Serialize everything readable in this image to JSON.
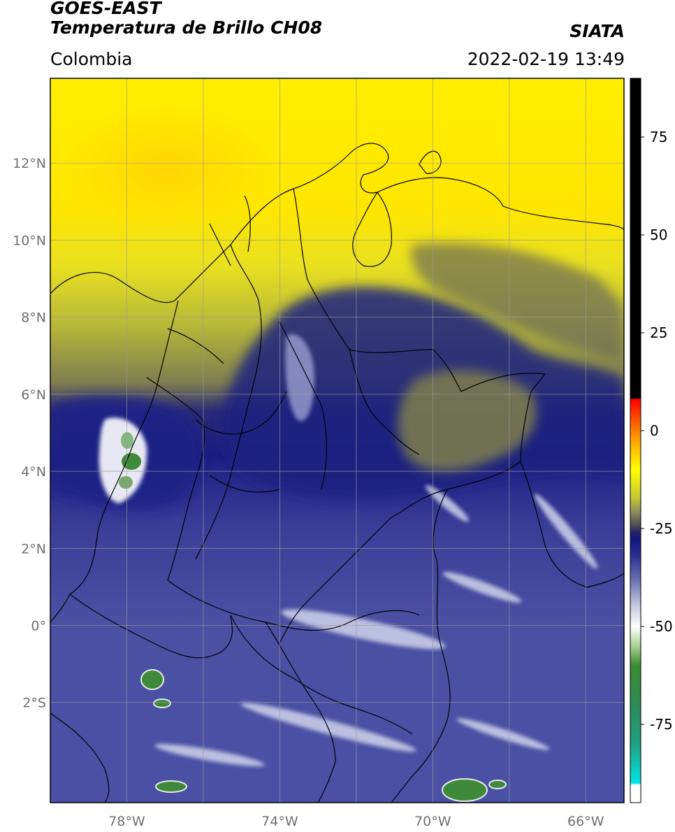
{
  "header": {
    "title_line1": "GOES-EAST",
    "title_line2": "Temperatura de Brillo CH08",
    "region": "Colombia",
    "source": "SIATA",
    "timestamp": "2022-02-19 13:49"
  },
  "map": {
    "lon_range": [
      -80,
      -65
    ],
    "lat_range": [
      -4.6,
      14.2
    ],
    "lon_ticks": [
      {
        "value": -78,
        "label": "78°W"
      },
      {
        "value": -74,
        "label": "74°W"
      },
      {
        "value": -70,
        "label": "70°W"
      },
      {
        "value": -66,
        "label": "66°W"
      }
    ],
    "lat_ticks": [
      {
        "value": 12,
        "label": "12°N"
      },
      {
        "value": 10,
        "label": "10°N"
      },
      {
        "value": 8,
        "label": "8°N"
      },
      {
        "value": 6,
        "label": "6°N"
      },
      {
        "value": 4,
        "label": "4°N"
      },
      {
        "value": 2,
        "label": "2°N"
      },
      {
        "value": 0,
        "label": "0°"
      },
      {
        "value": -2,
        "label": "2°S"
      }
    ]
  },
  "colorbar": {
    "range": [
      -95,
      90
    ],
    "ticks": [
      {
        "value": 75,
        "label": "75"
      },
      {
        "value": 50,
        "label": "50"
      },
      {
        "value": 25,
        "label": "25"
      },
      {
        "value": 0,
        "label": "0"
      },
      {
        "value": -25,
        "label": "-25"
      },
      {
        "value": -50,
        "label": "-50"
      },
      {
        "value": -75,
        "label": "-75"
      }
    ],
    "stops": [
      {
        "value": -95,
        "color": "#ffffff"
      },
      {
        "value": -90.5,
        "color": "#ffffff"
      },
      {
        "value": -90,
        "color": "#00e5e5"
      },
      {
        "value": -80,
        "color": "#20a080"
      },
      {
        "value": -70,
        "color": "#2e8b57"
      },
      {
        "value": -60,
        "color": "#3a8a30"
      },
      {
        "value": -55,
        "color": "#a8d090"
      },
      {
        "value": -50,
        "color": "#ffffff"
      },
      {
        "value": -45,
        "color": "#c8cce0"
      },
      {
        "value": -38,
        "color": "#6a70b0"
      },
      {
        "value": -32,
        "color": "#2a3090"
      },
      {
        "value": -28,
        "color": "#101880"
      },
      {
        "value": -26,
        "color": "#20206a"
      },
      {
        "value": -24,
        "color": "#505050"
      },
      {
        "value": -21,
        "color": "#888860"
      },
      {
        "value": -17,
        "color": "#c8c830"
      },
      {
        "value": -10,
        "color": "#ffff00"
      },
      {
        "value": -3,
        "color": "#ffaa00"
      },
      {
        "value": 3,
        "color": "#ff5000"
      },
      {
        "value": 8,
        "color": "#ff0000"
      },
      {
        "value": 8.3,
        "color": "#000000"
      },
      {
        "value": 90,
        "color": "#000000"
      }
    ]
  }
}
